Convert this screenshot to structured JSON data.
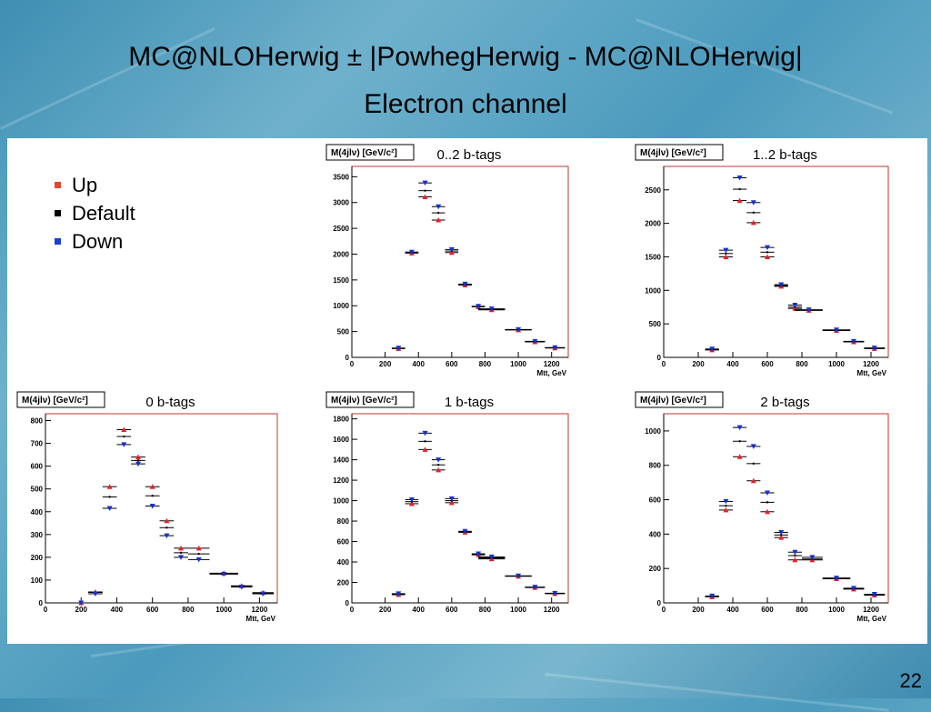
{
  "slide": {
    "title_line1": "MC@NLOHerwig ± |PowhegHerwig - MC@NLOHerwig|",
    "title_line2": "Electron channel",
    "page_number": "22"
  },
  "legend": {
    "items": [
      {
        "label": "Up",
        "color": "#e8452a"
      },
      {
        "label": "Default",
        "color": "#000000"
      },
      {
        "label": "Down",
        "color": "#1a3fd0"
      }
    ]
  },
  "colors": {
    "up": "#e8202a",
    "default": "#000000",
    "down": "#1530d0",
    "frame": "#c0392b"
  },
  "chart_data": [
    {
      "type": "scatter",
      "title": "0..2 b-tags",
      "ylabel": "M(4jlν) [GeV/c²]",
      "xlabel": "Mtt, GeV",
      "xlim": [
        0,
        1300
      ],
      "ylim": [
        0,
        3700
      ],
      "xticks": [
        0,
        200,
        400,
        600,
        800,
        1000,
        1200
      ],
      "yticks": [
        0,
        500,
        1000,
        1500,
        2000,
        2500,
        3000,
        3500
      ],
      "x": [
        280,
        360,
        440,
        520,
        600,
        680,
        760,
        840,
        1000,
        1100,
        1220
      ],
      "xerr": [
        40,
        40,
        40,
        40,
        40,
        40,
        40,
        80,
        80,
        60,
        60
      ],
      "series": [
        {
          "name": "Up",
          "values": [
            170,
            2020,
            3110,
            2660,
            2030,
            1400,
            980,
            920,
            530,
            300,
            180
          ]
        },
        {
          "name": "Default",
          "values": [
            175,
            2030,
            3230,
            2800,
            2060,
            1410,
            985,
            930,
            535,
            305,
            185
          ]
        },
        {
          "name": "Down",
          "values": [
            180,
            2040,
            3380,
            2920,
            2090,
            1420,
            990,
            940,
            540,
            310,
            190
          ]
        }
      ]
    },
    {
      "type": "scatter",
      "title": "1..2 b-tags",
      "ylabel": "M(4jlν) [GeV/c²]",
      "xlabel": "Mtt, GeV",
      "xlim": [
        0,
        1300
      ],
      "ylim": [
        0,
        2850
      ],
      "xticks": [
        0,
        200,
        400,
        600,
        800,
        1000,
        1200
      ],
      "yticks": [
        0,
        500,
        1000,
        1500,
        2000,
        2500
      ],
      "x": [
        280,
        360,
        440,
        520,
        600,
        680,
        760,
        840,
        1000,
        1100,
        1220
      ],
      "xerr": [
        40,
        40,
        40,
        40,
        40,
        40,
        40,
        80,
        80,
        60,
        60
      ],
      "series": [
        {
          "name": "Up",
          "values": [
            110,
            1500,
            2340,
            2010,
            1500,
            1060,
            730,
            700,
            400,
            230,
            130
          ]
        },
        {
          "name": "Default",
          "values": [
            115,
            1550,
            2510,
            2160,
            1570,
            1070,
            750,
            705,
            405,
            235,
            135
          ]
        },
        {
          "name": "Down",
          "values": [
            125,
            1600,
            2680,
            2310,
            1640,
            1085,
            780,
            710,
            410,
            240,
            140
          ]
        }
      ]
    },
    {
      "type": "scatter",
      "title": "0 b-tags",
      "ylabel": "M(4jlν) [GeV/c²]",
      "xlabel": "Mtt, GeV",
      "xlim": [
        0,
        1300
      ],
      "ylim": [
        0,
        830
      ],
      "xticks": [
        0,
        200,
        400,
        600,
        800,
        1000,
        1200
      ],
      "yticks": [
        0,
        100,
        200,
        300,
        400,
        500,
        600,
        700,
        800
      ],
      "x": [
        200,
        280,
        360,
        440,
        520,
        600,
        680,
        760,
        860,
        1000,
        1100,
        1220
      ],
      "xerr": [
        0,
        40,
        40,
        40,
        40,
        40,
        40,
        40,
        60,
        80,
        60,
        60
      ],
      "series": [
        {
          "name": "Up",
          "values": [
            0,
            48,
            510,
            760,
            640,
            510,
            360,
            240,
            240,
            130,
            75,
            45
          ]
        },
        {
          "name": "Default",
          "values": [
            0,
            46,
            465,
            730,
            625,
            470,
            330,
            220,
            215,
            128,
            72,
            42
          ]
        },
        {
          "name": "Down",
          "values": [
            0,
            40,
            415,
            695,
            610,
            425,
            295,
            200,
            190,
            126,
            70,
            40
          ]
        }
      ]
    },
    {
      "type": "scatter",
      "title": "1 b-tags",
      "ylabel": "M(4jlν) [GeV/c²]",
      "xlabel": "",
      "xlim": [
        0,
        1300
      ],
      "ylim": [
        0,
        1850
      ],
      "xticks": [
        0,
        200,
        400,
        600,
        800,
        1000,
        1200
      ],
      "yticks": [
        0,
        200,
        400,
        600,
        800,
        1000,
        1200,
        1400,
        1600,
        1800
      ],
      "x": [
        280,
        360,
        440,
        520,
        600,
        680,
        760,
        840,
        1000,
        1100,
        1220
      ],
      "xerr": [
        40,
        40,
        40,
        40,
        40,
        40,
        40,
        80,
        80,
        60,
        60
      ],
      "series": [
        {
          "name": "Up",
          "values": [
            80,
            970,
            1500,
            1300,
            980,
            690,
            470,
            430,
            260,
            150,
            90
          ]
        },
        {
          "name": "Default",
          "values": [
            85,
            990,
            1580,
            1350,
            1000,
            695,
            475,
            440,
            262,
            152,
            92
          ]
        },
        {
          "name": "Down",
          "values": [
            90,
            1010,
            1660,
            1400,
            1020,
            700,
            480,
            450,
            265,
            155,
            95
          ]
        }
      ]
    },
    {
      "type": "scatter",
      "title": "2 b-tags",
      "ylabel": "M(4jlν) [GeV/c²]",
      "xlabel": "Mtt, GeV",
      "xlim": [
        0,
        1300
      ],
      "ylim": [
        0,
        1100
      ],
      "xticks": [
        0,
        200,
        400,
        600,
        800,
        1000,
        1200
      ],
      "yticks": [
        0,
        200,
        400,
        600,
        800,
        1000
      ],
      "x": [
        280,
        360,
        440,
        520,
        600,
        680,
        760,
        860,
        1000,
        1100,
        1220
      ],
      "xerr": [
        40,
        40,
        40,
        40,
        40,
        40,
        40,
        60,
        80,
        60,
        60
      ],
      "series": [
        {
          "name": "Up",
          "values": [
            35,
            540,
            850,
            710,
            530,
            380,
            250,
            250,
            140,
            80,
            45
          ]
        },
        {
          "name": "Default",
          "values": [
            37,
            565,
            940,
            810,
            585,
            395,
            275,
            255,
            142,
            82,
            47
          ]
        },
        {
          "name": "Down",
          "values": [
            40,
            590,
            1020,
            910,
            640,
            410,
            295,
            265,
            145,
            85,
            50
          ]
        }
      ]
    }
  ]
}
